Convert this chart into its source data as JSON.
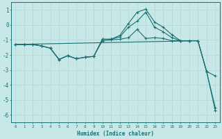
{
  "xlabel": "Humidex (Indice chaleur)",
  "xlim": [
    -0.5,
    23.5
  ],
  "ylim": [
    -6.5,
    1.5
  ],
  "xticks": [
    0,
    1,
    2,
    3,
    4,
    5,
    6,
    7,
    8,
    9,
    10,
    11,
    12,
    13,
    14,
    15,
    16,
    17,
    18,
    19,
    20,
    21,
    22,
    23
  ],
  "yticks": [
    -6,
    -5,
    -4,
    -3,
    -2,
    -1,
    0,
    1
  ],
  "background_color": "#c8e8e8",
  "grid_color": "#b0d4d4",
  "line_color": "#1a7070",
  "line1_x": [
    0,
    1,
    2,
    3,
    4,
    5,
    6,
    7,
    8,
    9,
    10,
    11,
    12,
    13,
    14,
    15,
    16,
    17,
    18,
    19,
    20,
    21,
    22,
    23
  ],
  "line1_y": [
    -1.3,
    -1.3,
    -1.3,
    -1.4,
    -1.55,
    -2.3,
    -2.05,
    -2.25,
    -2.15,
    -2.1,
    -1.05,
    -1.0,
    -0.95,
    -0.85,
    -0.3,
    -0.9,
    -0.85,
    -0.9,
    -1.05,
    -1.05,
    -1.05,
    -1.05,
    -3.1,
    -3.4
  ],
  "line2_x": [
    0,
    1,
    2,
    3,
    4,
    5,
    6,
    7,
    8,
    9,
    10,
    11,
    12,
    13,
    14,
    15,
    16,
    17,
    18,
    19,
    20,
    21,
    22,
    23
  ],
  "line2_y": [
    -1.3,
    -1.3,
    -1.3,
    -1.4,
    -1.55,
    -2.3,
    -2.05,
    -2.25,
    -2.15,
    -2.1,
    -0.95,
    -0.95,
    -0.8,
    -0.15,
    0.25,
    0.85,
    -0.15,
    -0.45,
    -0.85,
    -1.05,
    -1.05,
    -1.05,
    -3.1,
    -5.5
  ],
  "line3_x": [
    0,
    1,
    2,
    3,
    4,
    5,
    6,
    7,
    8,
    9,
    10,
    11,
    12,
    13,
    14,
    15,
    16,
    17,
    18,
    19,
    20,
    21,
    22,
    23
  ],
  "line3_y": [
    -1.3,
    -1.3,
    -1.3,
    -1.4,
    -1.55,
    -2.3,
    -2.05,
    -2.25,
    -2.15,
    -2.1,
    -0.95,
    -0.95,
    -0.7,
    0.1,
    0.85,
    1.05,
    0.2,
    -0.15,
    -0.65,
    -1.05,
    -1.05,
    -1.05,
    -3.1,
    -5.7
  ],
  "line4_x": [
    0,
    21
  ],
  "line4_y": [
    -1.3,
    -1.05
  ]
}
